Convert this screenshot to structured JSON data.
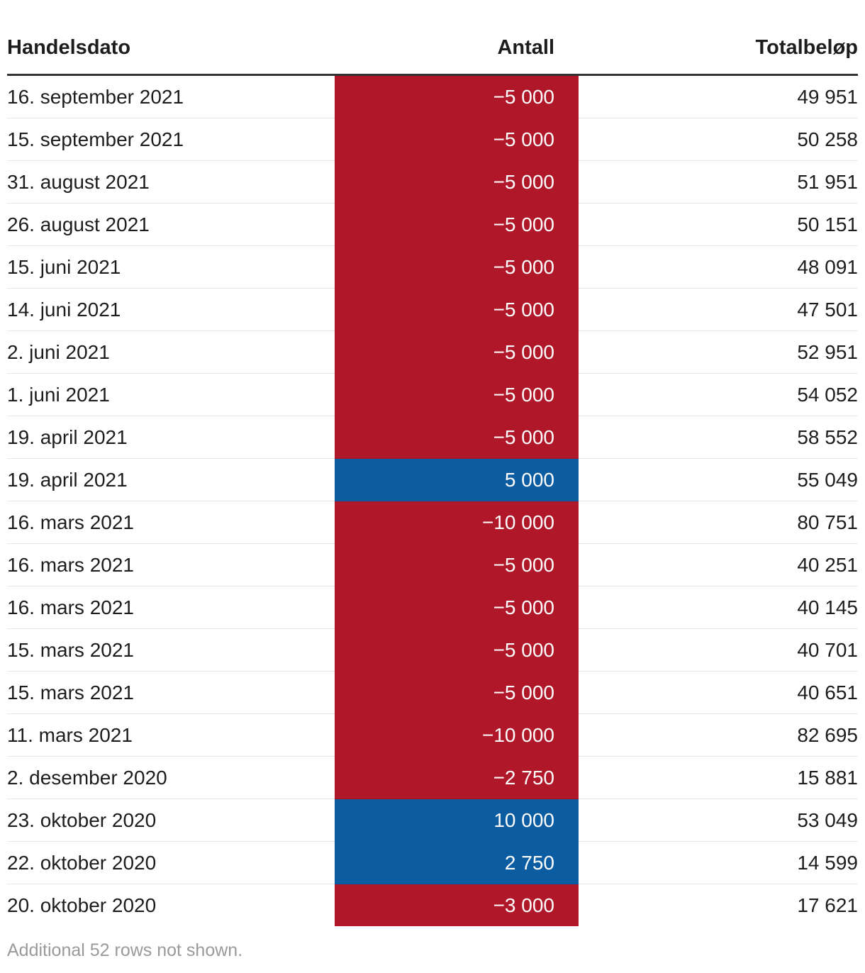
{
  "chart_data": {
    "type": "table",
    "columns": [
      "Handelsdato",
      "Antall",
      "Totalbeløp"
    ],
    "colors": {
      "negative": "#b01729",
      "positive": "#0b5ca1"
    },
    "rows": [
      {
        "date": "16. september 2021",
        "antall": "−5 000",
        "value": -5000,
        "total": "49 951"
      },
      {
        "date": "15. september 2021",
        "antall": "−5 000",
        "value": -5000,
        "total": "50 258"
      },
      {
        "date": "31. august 2021",
        "antall": "−5 000",
        "value": -5000,
        "total": "51 951"
      },
      {
        "date": "26. august 2021",
        "antall": "−5 000",
        "value": -5000,
        "total": "50 151"
      },
      {
        "date": "15. juni 2021",
        "antall": "−5 000",
        "value": -5000,
        "total": "48 091"
      },
      {
        "date": "14. juni 2021",
        "antall": "−5 000",
        "value": -5000,
        "total": "47 501"
      },
      {
        "date": "2. juni 2021",
        "antall": "−5 000",
        "value": -5000,
        "total": "52 951"
      },
      {
        "date": "1. juni 2021",
        "antall": "−5 000",
        "value": -5000,
        "total": "54 052"
      },
      {
        "date": "19. april 2021",
        "antall": "−5 000",
        "value": -5000,
        "total": "58 552"
      },
      {
        "date": "19. april 2021",
        "antall": "5 000",
        "value": 5000,
        "total": "55 049"
      },
      {
        "date": "16. mars 2021",
        "antall": "−10 000",
        "value": -10000,
        "total": "80 751"
      },
      {
        "date": "16. mars 2021",
        "antall": "−5 000",
        "value": -5000,
        "total": "40 251"
      },
      {
        "date": "16. mars 2021",
        "antall": "−5 000",
        "value": -5000,
        "total": "40 145"
      },
      {
        "date": "15. mars 2021",
        "antall": "−5 000",
        "value": -5000,
        "total": "40 701"
      },
      {
        "date": "15. mars 2021",
        "antall": "−5 000",
        "value": -5000,
        "total": "40 651"
      },
      {
        "date": "11. mars 2021",
        "antall": "−10 000",
        "value": -10000,
        "total": "82 695"
      },
      {
        "date": "2. desember 2020",
        "antall": "−2 750",
        "value": -2750,
        "total": "15 881"
      },
      {
        "date": "23. oktober 2020",
        "antall": "10 000",
        "value": 10000,
        "total": "53 049"
      },
      {
        "date": "22. oktober 2020",
        "antall": "2 750",
        "value": 2750,
        "total": "14 599"
      },
      {
        "date": "20. oktober 2020",
        "antall": "−3 000",
        "value": -3000,
        "total": "17 621"
      }
    ],
    "footnote": "Additional 52 rows not shown."
  }
}
